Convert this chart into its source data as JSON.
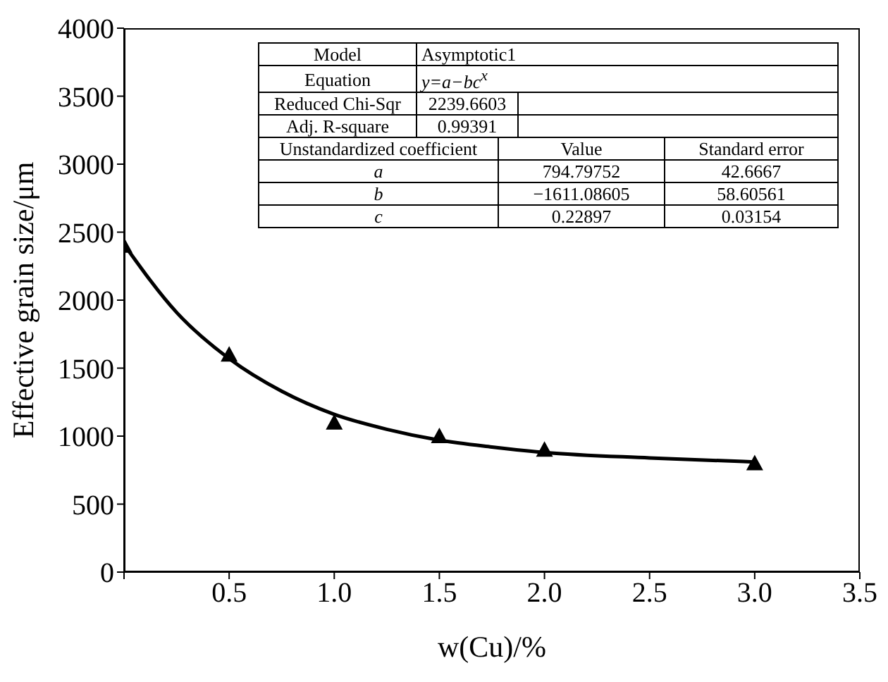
{
  "chart_data": {
    "type": "scatter",
    "xlabel": "w(Cu)/%",
    "ylabel": "Effective grain size/μm",
    "xlim": [
      0,
      3.5
    ],
    "xticks": [
      {
        "value": 0,
        "label": null
      },
      0.5,
      {
        "value": 1,
        "label": "1.0"
      },
      1.5,
      {
        "value": 2,
        "label": "2.0"
      },
      2.5,
      {
        "value": 3,
        "label": "3.0"
      },
      3.5
    ],
    "ylim": [
      0,
      4000
    ],
    "yticks": [
      0,
      500,
      1000,
      1500,
      2000,
      2500,
      3000,
      3500,
      4000
    ],
    "grid": false,
    "legend": false,
    "marker": "triangle",
    "series": [
      {
        "color": "#000000",
        "x": [
          0,
          0.5,
          1.0,
          1.5,
          2.0,
          3.0
        ],
        "values": [
          2400,
          1600,
          1100,
          1000,
          900,
          800
        ]
      },
      {
        "type": "line",
        "color": "#000000",
        "marker": "none",
        "line_style": "solid",
        "x": [
          0,
          0.25,
          0.5,
          0.75,
          1.0,
          1.25,
          1.5,
          1.75,
          2.0,
          2.5,
          3.0
        ],
        "values": [
          2410,
          1910,
          1570,
          1330,
          1160,
          1050,
          970,
          920,
          880,
          840,
          810
        ]
      }
    ],
    "annotations": [
      "Model",
      "Asymptotic1",
      "Equation",
      "y=a−bc$^{x}$",
      "Reduced Chi-Sqr",
      "2239.6603",
      "Adj. R-square",
      "0.99391",
      "Unstandardized coefficient",
      "Value",
      "Standard error",
      "a",
      "794.79752",
      "42.6667",
      "b",
      "−1611.08605",
      "58.60561",
      "c",
      "0.22897",
      "0.03154"
    ]
  }
}
